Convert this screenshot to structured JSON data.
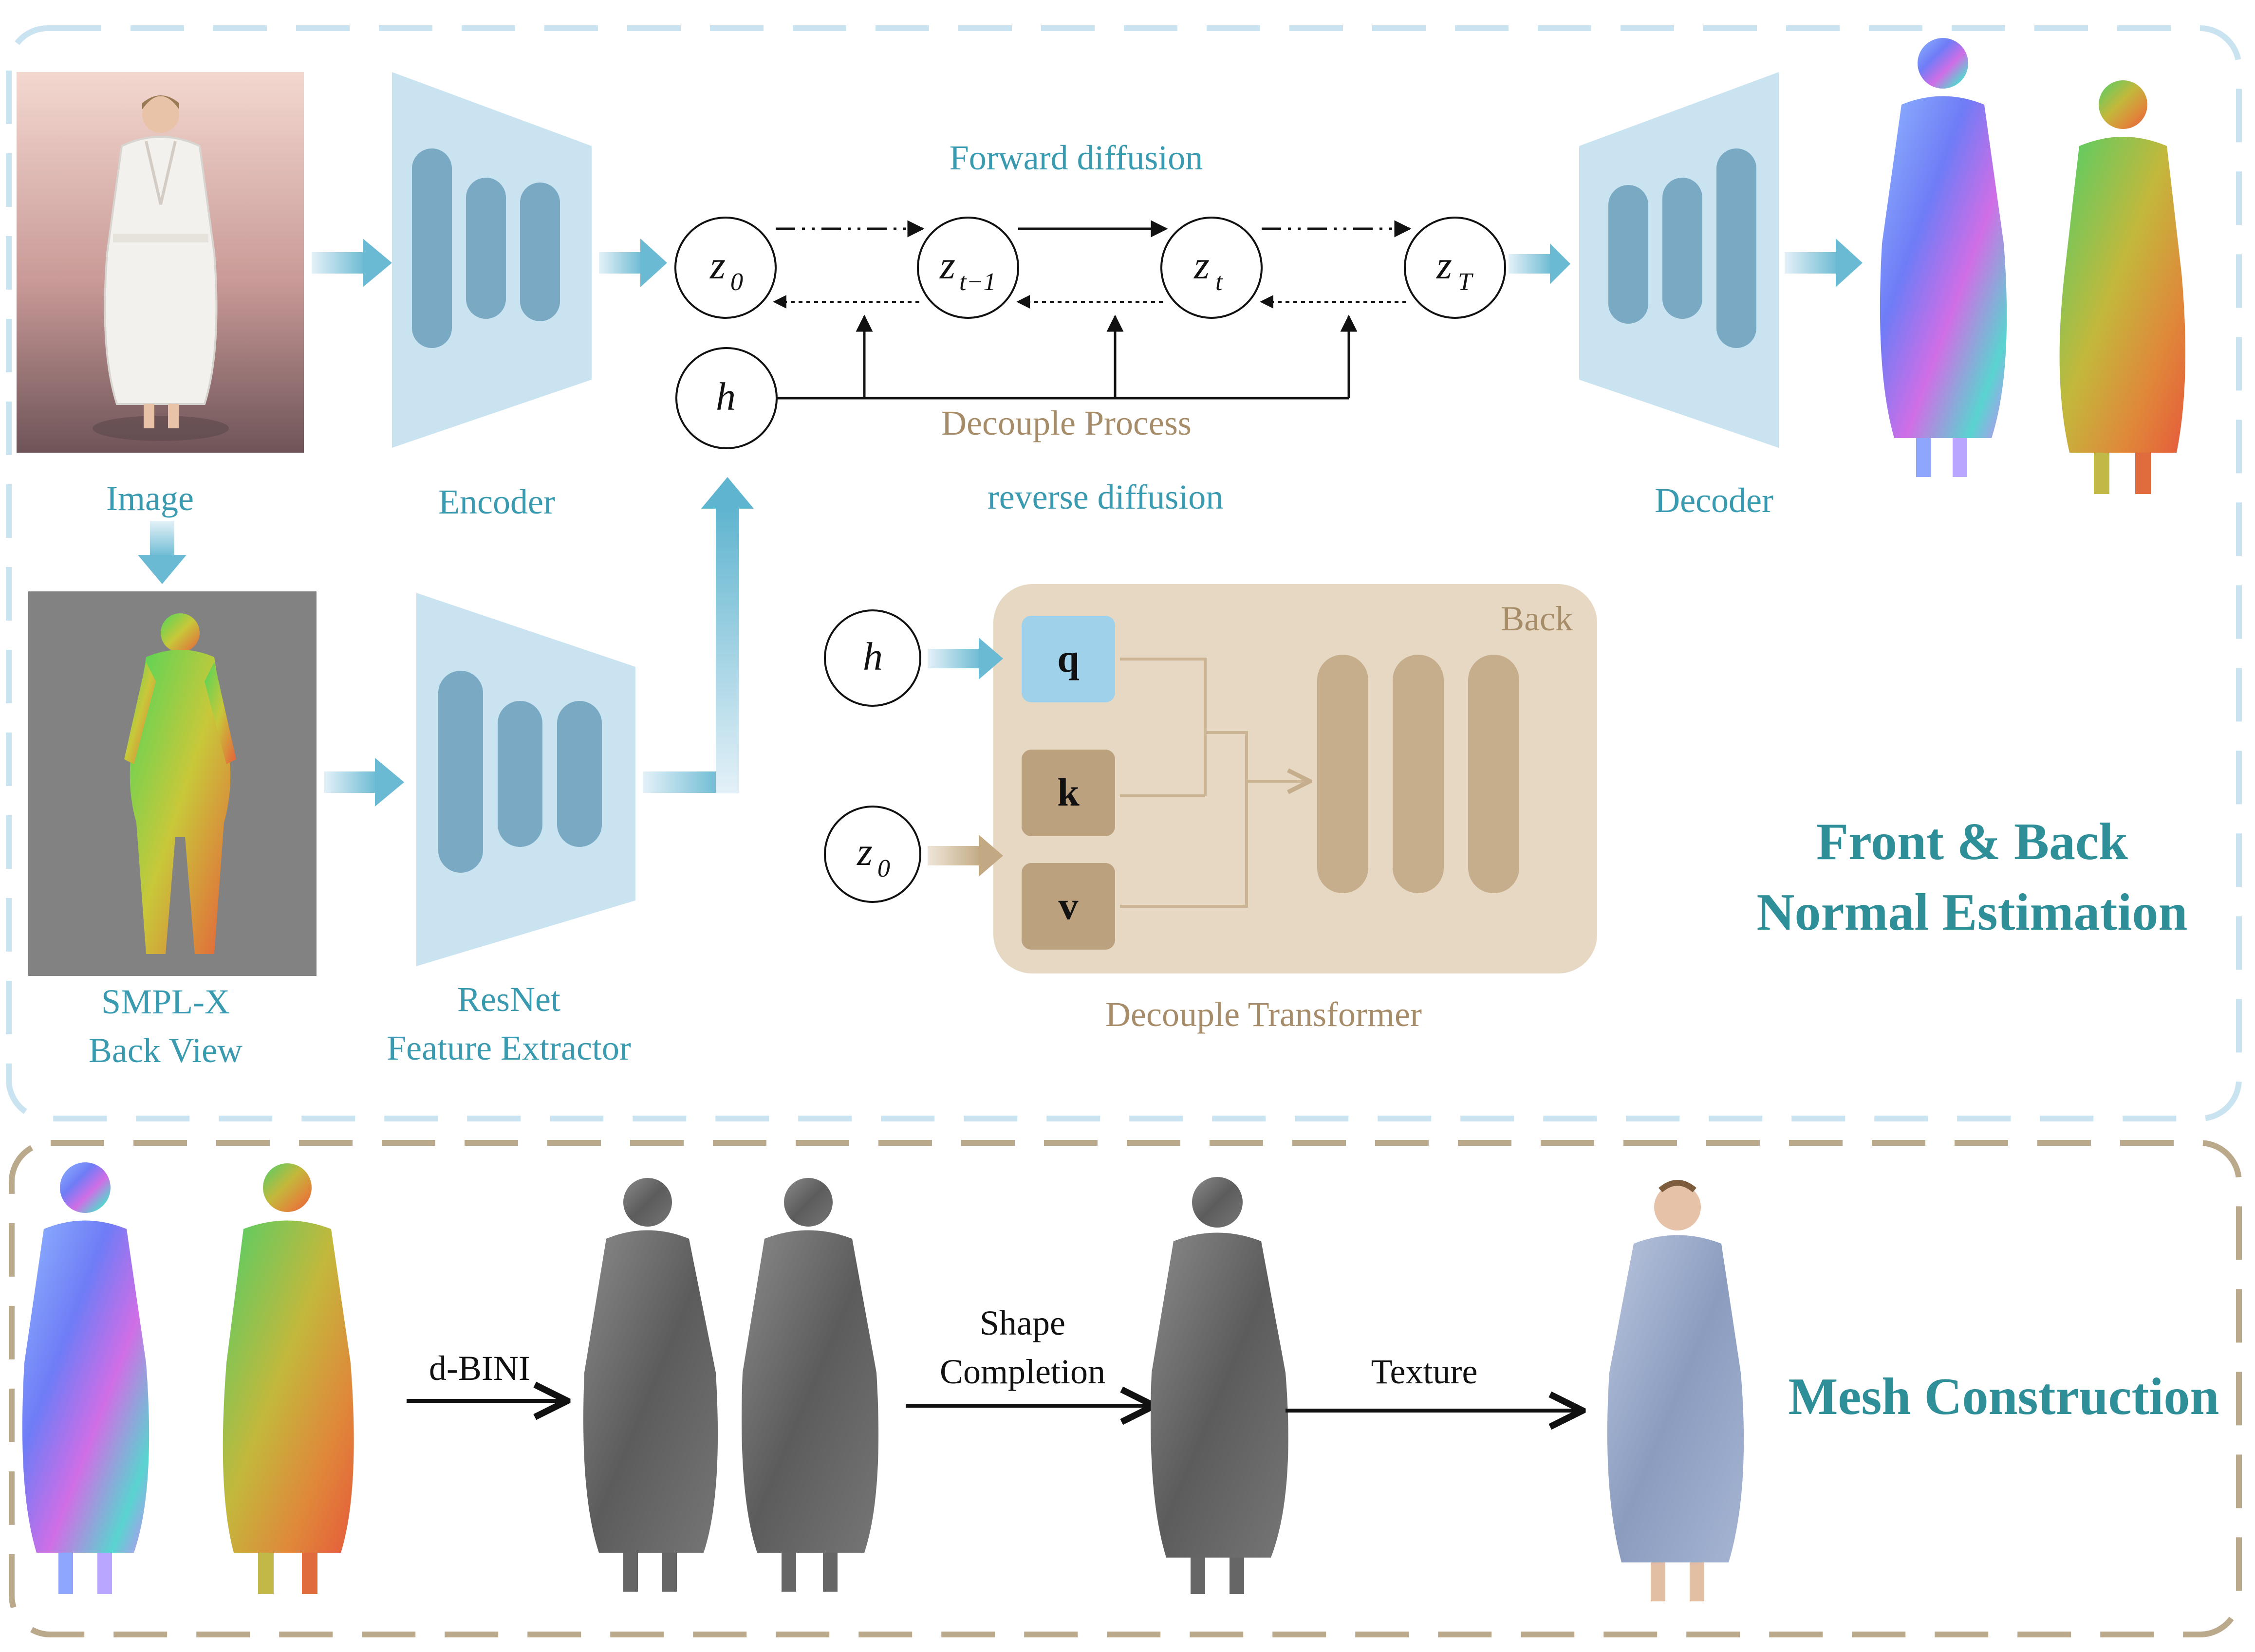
{
  "colors": {
    "teal_text": "#3a9ab0",
    "tan_text": "#a68c68",
    "light_blue": "#c9e3f0",
    "dark_blue_bar": "#7aa9c4",
    "tan_panel": "#e6d8c2",
    "tan_bar": "#c6ae8d",
    "mesh_gray": "#6e6e6e"
  },
  "top_panel": {
    "labels": {
      "image": "Image",
      "encoder": "Encoder",
      "decoder": "Decoder",
      "smplx_line1": "SMPL-X",
      "smplx_line2": "Back View",
      "resnet_line1": "ResNet",
      "resnet_line2": "Feature Extractor",
      "forward_diffusion": "Forward diffusion",
      "decouple_process": "Decouple Process",
      "reverse_diffusion": "reverse diffusion",
      "decouple_transformer": "Decouple Transformer",
      "back": "Back",
      "title_line1": "Front & Back",
      "title_line2": "Normal Estimation"
    },
    "nodes": {
      "z0": {
        "base": "z",
        "sub": "0"
      },
      "zt1": {
        "base": "z",
        "sub": "t−1"
      },
      "zt": {
        "base": "z",
        "sub": "t"
      },
      "zT": {
        "base": "z",
        "sub": "T"
      },
      "h": "h"
    },
    "transformer": {
      "h_input": "h",
      "z0_input": {
        "base": "z",
        "sub": "0"
      },
      "q": "q",
      "k": "k",
      "v": "v"
    }
  },
  "bottom_panel": {
    "dbini": "d-BINI",
    "shape_line1": "Shape",
    "shape_line2": "Completion",
    "texture": "Texture",
    "title": "Mesh Construction"
  }
}
